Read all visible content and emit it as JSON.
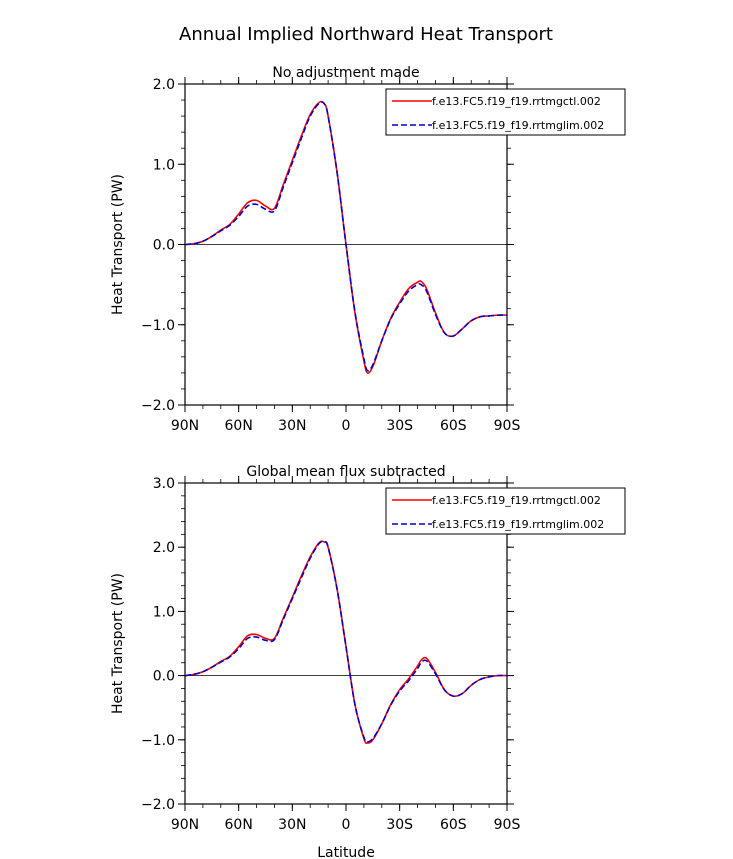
{
  "title": "Annual Implied Northward Heat Transport",
  "xlabel": "Latitude",
  "chart_data": [
    {
      "type": "line",
      "subtitle": "No adjustment made",
      "ylabel": "Heat Transport (PW)",
      "ylim": [
        -2.0,
        2.0
      ],
      "xlim": [
        90,
        -90
      ],
      "yticks": [
        -2.0,
        -1.0,
        0.0,
        1.0,
        2.0
      ],
      "ytick_labels": [
        "−2.0",
        "−1.0",
        "0.0",
        "1.0",
        "2.0"
      ],
      "xticks": [
        90,
        60,
        30,
        0,
        -30,
        -60,
        -90
      ],
      "xtick_labels": [
        "90N",
        "60N",
        "30N",
        "0",
        "30S",
        "60S",
        "90S"
      ],
      "grid": false,
      "legend_position": "top-right",
      "x": [
        90,
        85,
        80,
        75,
        70,
        65,
        60,
        55,
        50,
        45,
        40,
        35,
        30,
        25,
        20,
        15,
        12,
        10,
        5,
        0,
        -5,
        -10,
        -12,
        -15,
        -20,
        -25,
        -30,
        -35,
        -40,
        -42,
        -45,
        -50,
        -55,
        -60,
        -65,
        -70,
        -75,
        -80,
        -85,
        -90
      ],
      "series": [
        {
          "name": "f.e13.FC5.f19_f19.rrtmgctl.002",
          "color": "#ff0000",
          "dash": "solid",
          "values": [
            0.0,
            0.01,
            0.04,
            0.1,
            0.18,
            0.25,
            0.38,
            0.52,
            0.55,
            0.48,
            0.45,
            0.75,
            1.05,
            1.35,
            1.62,
            1.77,
            1.75,
            1.6,
            0.9,
            0.0,
            -0.85,
            -1.45,
            -1.6,
            -1.52,
            -1.2,
            -0.92,
            -0.72,
            -0.55,
            -0.47,
            -0.46,
            -0.55,
            -0.85,
            -1.1,
            -1.14,
            -1.05,
            -0.95,
            -0.9,
            -0.89,
            -0.88,
            -0.88
          ]
        },
        {
          "name": "f.e13.FC5.f19_f19.rrtmglim.002",
          "color": "#0000cc",
          "dash": "dashed",
          "values": [
            0.0,
            0.01,
            0.04,
            0.1,
            0.17,
            0.24,
            0.35,
            0.48,
            0.5,
            0.44,
            0.42,
            0.72,
            1.02,
            1.32,
            1.6,
            1.76,
            1.75,
            1.6,
            0.9,
            0.0,
            -0.84,
            -1.42,
            -1.57,
            -1.5,
            -1.2,
            -0.93,
            -0.74,
            -0.58,
            -0.5,
            -0.5,
            -0.58,
            -0.87,
            -1.1,
            -1.14,
            -1.05,
            -0.95,
            -0.9,
            -0.89,
            -0.88,
            -0.88
          ]
        }
      ]
    },
    {
      "type": "line",
      "subtitle": "Global mean flux subtracted",
      "ylabel": "Heat Transport (PW)",
      "ylim": [
        -2.0,
        3.0
      ],
      "xlim": [
        90,
        -90
      ],
      "yticks": [
        -2.0,
        -1.0,
        0.0,
        1.0,
        2.0,
        3.0
      ],
      "ytick_labels": [
        "−2.0",
        "−1.0",
        "0.0",
        "1.0",
        "2.0",
        "3.0"
      ],
      "xticks": [
        90,
        60,
        30,
        0,
        -30,
        -60,
        -90
      ],
      "xtick_labels": [
        "90N",
        "60N",
        "30N",
        "0",
        "30S",
        "60S",
        "90S"
      ],
      "grid": false,
      "legend_position": "top-right",
      "x": [
        90,
        85,
        80,
        75,
        70,
        65,
        60,
        55,
        50,
        45,
        40,
        35,
        30,
        25,
        20,
        15,
        12,
        10,
        5,
        0,
        -5,
        -10,
        -12,
        -15,
        -20,
        -25,
        -30,
        -35,
        -40,
        -42,
        -45,
        -50,
        -55,
        -60,
        -65,
        -70,
        -75,
        -80,
        -85,
        -90
      ],
      "series": [
        {
          "name": "f.e13.FC5.f19_f19.rrtmgctl.002",
          "color": "#ff0000",
          "dash": "solid",
          "values": [
            0.0,
            0.02,
            0.06,
            0.13,
            0.22,
            0.3,
            0.45,
            0.62,
            0.64,
            0.58,
            0.58,
            0.9,
            1.22,
            1.55,
            1.85,
            2.07,
            2.08,
            2.0,
            1.35,
            0.45,
            -0.45,
            -0.98,
            -1.05,
            -1.0,
            -0.75,
            -0.45,
            -0.22,
            -0.05,
            0.15,
            0.24,
            0.27,
            0.05,
            -0.22,
            -0.32,
            -0.28,
            -0.15,
            -0.06,
            -0.02,
            0.0,
            0.0
          ]
        },
        {
          "name": "f.e13.FC5.f19_f19.rrtmglim.002",
          "color": "#0000cc",
          "dash": "dashed",
          "values": [
            0.0,
            0.02,
            0.06,
            0.13,
            0.21,
            0.29,
            0.42,
            0.58,
            0.6,
            0.55,
            0.56,
            0.88,
            1.2,
            1.52,
            1.83,
            2.06,
            2.08,
            2.0,
            1.35,
            0.45,
            -0.45,
            -0.96,
            -1.03,
            -0.98,
            -0.75,
            -0.46,
            -0.24,
            -0.08,
            0.11,
            0.2,
            0.23,
            0.03,
            -0.22,
            -0.32,
            -0.28,
            -0.15,
            -0.06,
            -0.02,
            0.0,
            0.0
          ]
        }
      ]
    }
  ]
}
